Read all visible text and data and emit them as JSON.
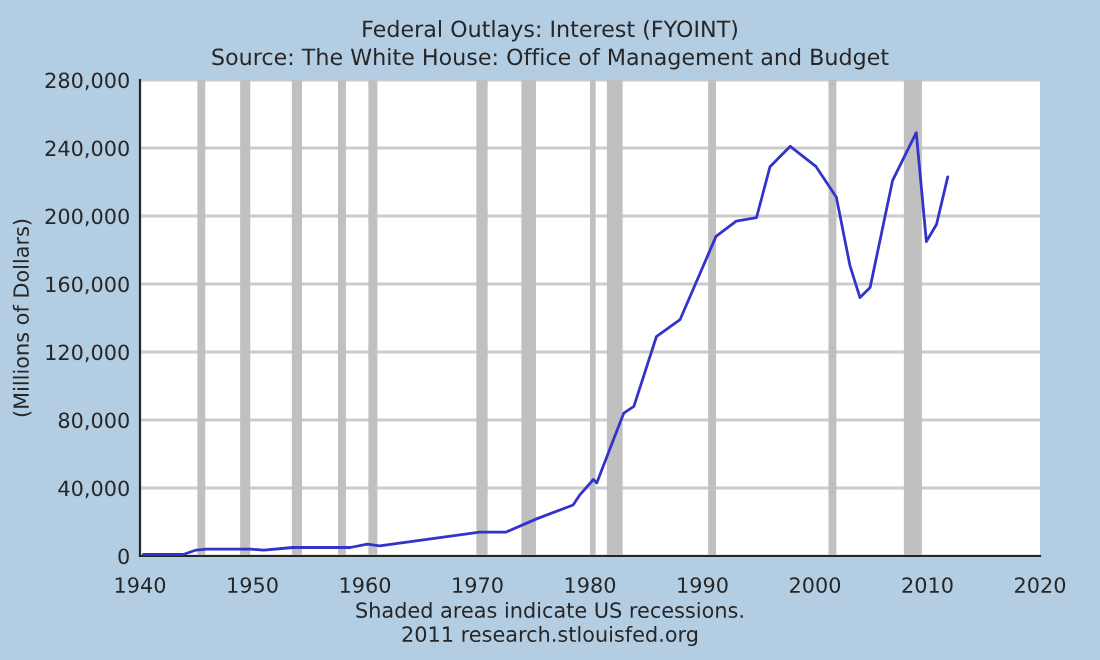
{
  "chart_data": {
    "type": "line",
    "title": "Federal Outlays: Interest (FYOINT)",
    "subtitle": "Source: The White House: Office of Management and Budget",
    "ylabel": "(Millions of Dollars)",
    "annotations": [
      "Shaded areas indicate US recessions.",
      "2011 research.stlouisfed.org"
    ],
    "series": [
      {
        "color": "#3333cc",
        "x": [
          1940.3,
          1943.9,
          1945.0,
          1945.9,
          1949.8,
          1951.0,
          1953.6,
          1958.7,
          1960.2,
          1961.3,
          1970.2,
          1972.5,
          1975.3,
          1978.5,
          1979.1,
          1980.3,
          1980.6,
          1982.7,
          1983.0,
          1983.9,
          1985.9,
          1988.0,
          1991.2,
          1993.0,
          1994.8,
          1996.0,
          1997.8,
          2000.1,
          2001.9,
          2003.1,
          2004.0,
          2004.9,
          2006.9,
          2009.0,
          2009.9,
          2010.8,
          2011.8
        ],
        "values": [
          1000,
          1000,
          3500,
          4000,
          4000,
          3500,
          5000,
          5000,
          7000,
          6000,
          14000,
          14000,
          22000,
          30000,
          36000,
          45000,
          43000,
          79000,
          84000,
          88000,
          129000,
          139000,
          188000,
          197000,
          199000,
          229000,
          241000,
          229000,
          211000,
          171000,
          152000,
          158000,
          221000,
          249000,
          185000,
          195000,
          223000
        ]
      }
    ],
    "xlim": [
      1940,
      2020
    ],
    "xticks": [
      1940,
      1950,
      1960,
      1970,
      1980,
      1990,
      2000,
      2010,
      2020
    ],
    "ylim": [
      0,
      280000
    ],
    "yticks": [
      {
        "value": 0,
        "label": "0"
      },
      {
        "value": 40000,
        "label": "40,000"
      },
      {
        "value": 80000,
        "label": "80,000"
      },
      {
        "value": 120000,
        "label": "120,000"
      },
      {
        "value": 160000,
        "label": "160,000"
      },
      {
        "value": 200000,
        "label": "200,000"
      },
      {
        "value": 240000,
        "label": "240,000"
      },
      {
        "value": 280000,
        "label": "280,000"
      }
    ],
    "grid": "y",
    "bands": [
      {
        "axis": "x",
        "from": 1945.1,
        "to": 1945.8,
        "color": "#c0c0c0"
      },
      {
        "axis": "x",
        "from": 1948.9,
        "to": 1949.8,
        "color": "#c0c0c0"
      },
      {
        "axis": "x",
        "from": 1953.5,
        "to": 1954.4,
        "color": "#c0c0c0"
      },
      {
        "axis": "x",
        "from": 1957.6,
        "to": 1958.3,
        "color": "#c0c0c0"
      },
      {
        "axis": "x",
        "from": 1960.3,
        "to": 1961.1,
        "color": "#c0c0c0"
      },
      {
        "axis": "x",
        "from": 1969.9,
        "to": 1970.9,
        "color": "#c0c0c0"
      },
      {
        "axis": "x",
        "from": 1973.9,
        "to": 1975.2,
        "color": "#c0c0c0"
      },
      {
        "axis": "x",
        "from": 1980.0,
        "to": 1980.5,
        "color": "#c0c0c0"
      },
      {
        "axis": "x",
        "from": 1981.5,
        "to": 1982.9,
        "color": "#c0c0c0"
      },
      {
        "axis": "x",
        "from": 1990.5,
        "to": 1991.2,
        "color": "#c0c0c0"
      },
      {
        "axis": "x",
        "from": 2001.2,
        "to": 2001.9,
        "color": "#c0c0c0"
      },
      {
        "axis": "x",
        "from": 2007.9,
        "to": 2009.5,
        "color": "#c0c0c0"
      }
    ]
  }
}
